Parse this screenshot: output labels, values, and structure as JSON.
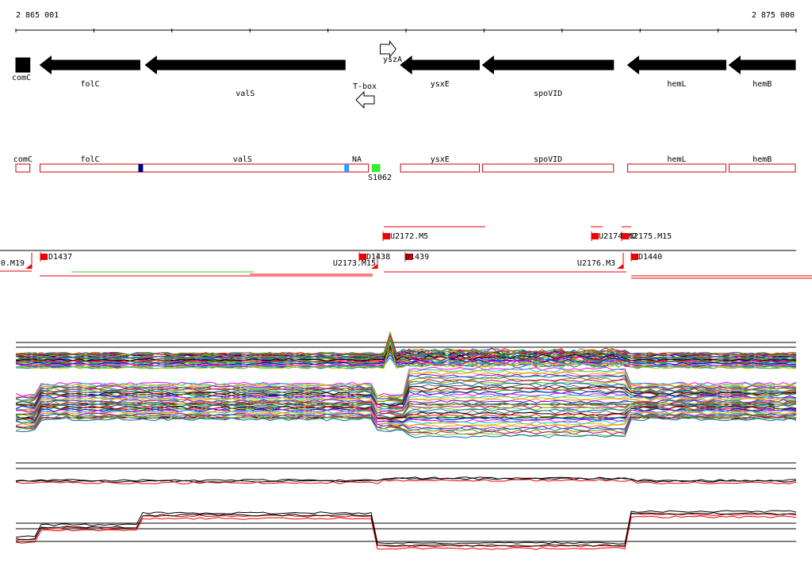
{
  "coordinates": {
    "start": "2 865 001",
    "end": "2 875 000"
  },
  "genes": [
    {
      "name": "comC",
      "strand": "+",
      "start": 0,
      "end": 180
    },
    {
      "name": "folC",
      "strand": "-",
      "start": 310,
      "end": 1590
    },
    {
      "name": "valS",
      "strand": "-",
      "start": 1660,
      "end": 4220
    },
    {
      "name": "yszA",
      "strand": "+",
      "start": 4670,
      "end": 4870
    },
    {
      "name": "ysxE",
      "strand": "-",
      "start": 4930,
      "end": 5940
    },
    {
      "name": "spoVID",
      "strand": "-",
      "start": 5980,
      "end": 7660
    },
    {
      "name": "hemL",
      "strand": "-",
      "start": 7840,
      "end": 9100
    },
    {
      "name": "hemB",
      "strand": "-",
      "start": 9140,
      "end": 9990
    }
  ],
  "terminator": {
    "name": "T-box",
    "strand": "-",
    "start": 4320,
    "end": 4530
  },
  "segments": [
    {
      "name": "comC",
      "start": 0,
      "end": 180
    },
    {
      "name": "folC",
      "start": 310,
      "end": 1590
    },
    {
      "name": "valS",
      "start": 1590,
      "end": 4220
    },
    {
      "name": "NA",
      "start": 4220,
      "end": 4520
    },
    {
      "name": "ysxE",
      "start": 4930,
      "end": 5940
    },
    {
      "name": "spoVID",
      "start": 5980,
      "end": 7660
    },
    {
      "name": "hemL",
      "start": 7840,
      "end": 9100
    },
    {
      "name": "hemB",
      "start": 9140,
      "end": 9990
    }
  ],
  "segment_marks": [
    {
      "pos": 1600,
      "color": "#000080"
    },
    {
      "pos": 4240,
      "color": "#3399ff"
    }
  ],
  "small_rna": {
    "name": "S1062",
    "start": 4560,
    "end": 4670,
    "color": "#33ee33"
  },
  "transcripts": [
    {
      "label": "0.M19",
      "side": "left",
      "pos": 190
    },
    {
      "label": "D1437",
      "side": "right",
      "pos": 320
    },
    {
      "label": "U2173.M15",
      "side": "left",
      "pos": 4550
    },
    {
      "label": "D1438",
      "side": "right",
      "pos": 4350
    },
    {
      "label": "U2172.M5",
      "side": "right",
      "pos": 4650
    },
    {
      "label": "D1439",
      "side": "right",
      "pos": 4930
    },
    {
      "label": "U2174.M2",
      "side": "right",
      "pos": 7250
    },
    {
      "label": "U2176.M3",
      "side": "left",
      "pos": 7680
    },
    {
      "label": "U2175.M15",
      "side": "right",
      "pos": 7650
    },
    {
      "label": "D1440",
      "side": "right",
      "pos": 7790
    }
  ],
  "colors": {
    "gene": "#000000",
    "segment_outline": "#cc0000",
    "transcript": "#ee0000"
  }
}
